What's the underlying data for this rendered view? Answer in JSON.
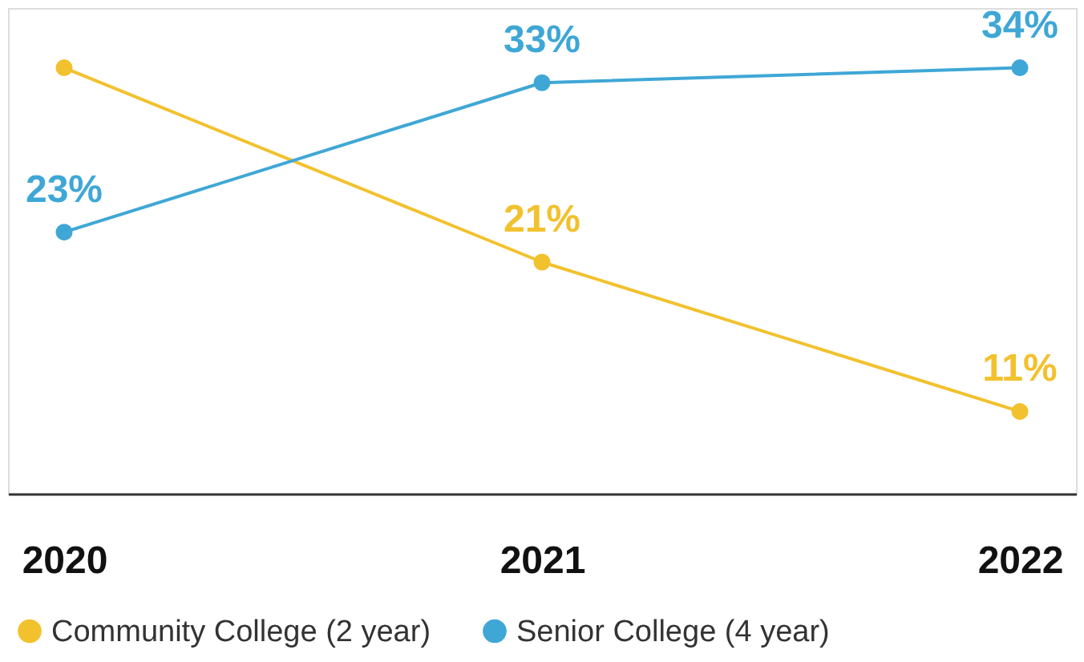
{
  "chart_data": {
    "type": "line",
    "categories": [
      "2020",
      "2021",
      "2022"
    ],
    "series": [
      {
        "name": "Community College (2 year)",
        "color": "#f2c12e",
        "values": [
          34,
          21,
          11
        ],
        "value_labels": [
          null,
          "21%",
          "11%"
        ]
      },
      {
        "name": "Senior College (4 year)",
        "color": "#3fa7d6",
        "values": [
          23,
          33,
          34
        ],
        "value_labels": [
          "23%",
          "33%",
          "34%"
        ]
      }
    ],
    "ylim": [
      5.5,
      38
    ],
    "marker": "circle",
    "line_style": "solid",
    "grid": false,
    "legend": "bottom"
  }
}
